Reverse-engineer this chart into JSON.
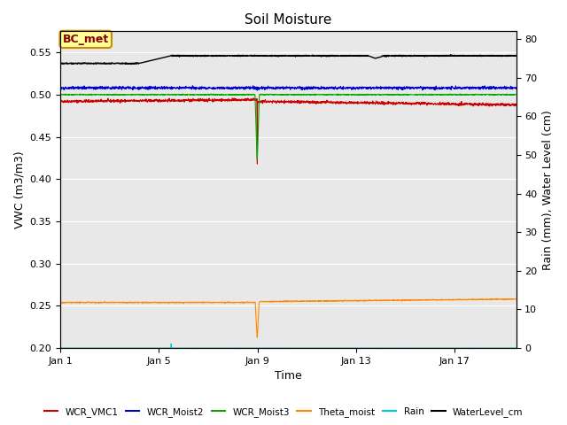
{
  "title": "Soil Moisture",
  "ylabel_left": "VWC (m3/m3)",
  "ylabel_right": "Rain (mm), Water Level (cm)",
  "xlabel": "Time",
  "ylim_left": [
    0.2,
    0.575
  ],
  "ylim_right": [
    0,
    82
  ],
  "bg_color": "#e8e8e8",
  "annotation_label": "BC_met",
  "series": {
    "WCR_VMC1": {
      "color": "#cc0000",
      "lw": 0.8
    },
    "WCR_Moist2": {
      "color": "#0000cc",
      "lw": 0.8
    },
    "WCR_Moist3": {
      "color": "#00aa00",
      "lw": 0.8
    },
    "Theta_moist": {
      "color": "#ff8800",
      "lw": 0.8
    },
    "Rain": {
      "color": "#00cccc",
      "lw": 0.8
    },
    "WaterLevel_cm": {
      "color": "#000000",
      "lw": 1.0
    }
  },
  "x_tick_labels": [
    "Jan 1",
    "Jan 5",
    "Jan 9",
    "Jan 13",
    "Jan 17"
  ],
  "x_tick_days": [
    0,
    4,
    8,
    12,
    16
  ],
  "yticks_left": [
    0.2,
    0.25,
    0.3,
    0.35,
    0.4,
    0.45,
    0.5,
    0.55
  ],
  "yticks_right": [
    0,
    10,
    20,
    30,
    40,
    50,
    60,
    70,
    80
  ]
}
